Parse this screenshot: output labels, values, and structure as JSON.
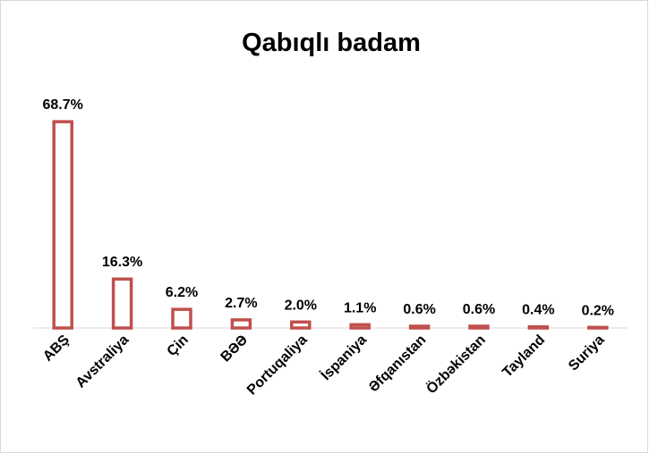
{
  "chart_data": {
    "type": "bar",
    "title": "Qabıqlı badam",
    "categories": [
      "ABŞ",
      "Avstraliya",
      "Çin",
      "BƏƏ",
      "Portuqaliya",
      "İspaniya",
      "Əfqanıstan",
      "Özbəkistan",
      "Tayland",
      "Suriya"
    ],
    "values": [
      68.7,
      16.3,
      6.2,
      2.7,
      2.0,
      1.1,
      0.6,
      0.6,
      0.4,
      0.2
    ],
    "value_labels": [
      "68.7%",
      "16.3%",
      "6.2%",
      "2.7%",
      "2.0%",
      "1.1%",
      "0.6%",
      "0.6%",
      "0.4%",
      "0.2%"
    ],
    "color": "#c0504d",
    "ylim": [
      0,
      75
    ]
  }
}
